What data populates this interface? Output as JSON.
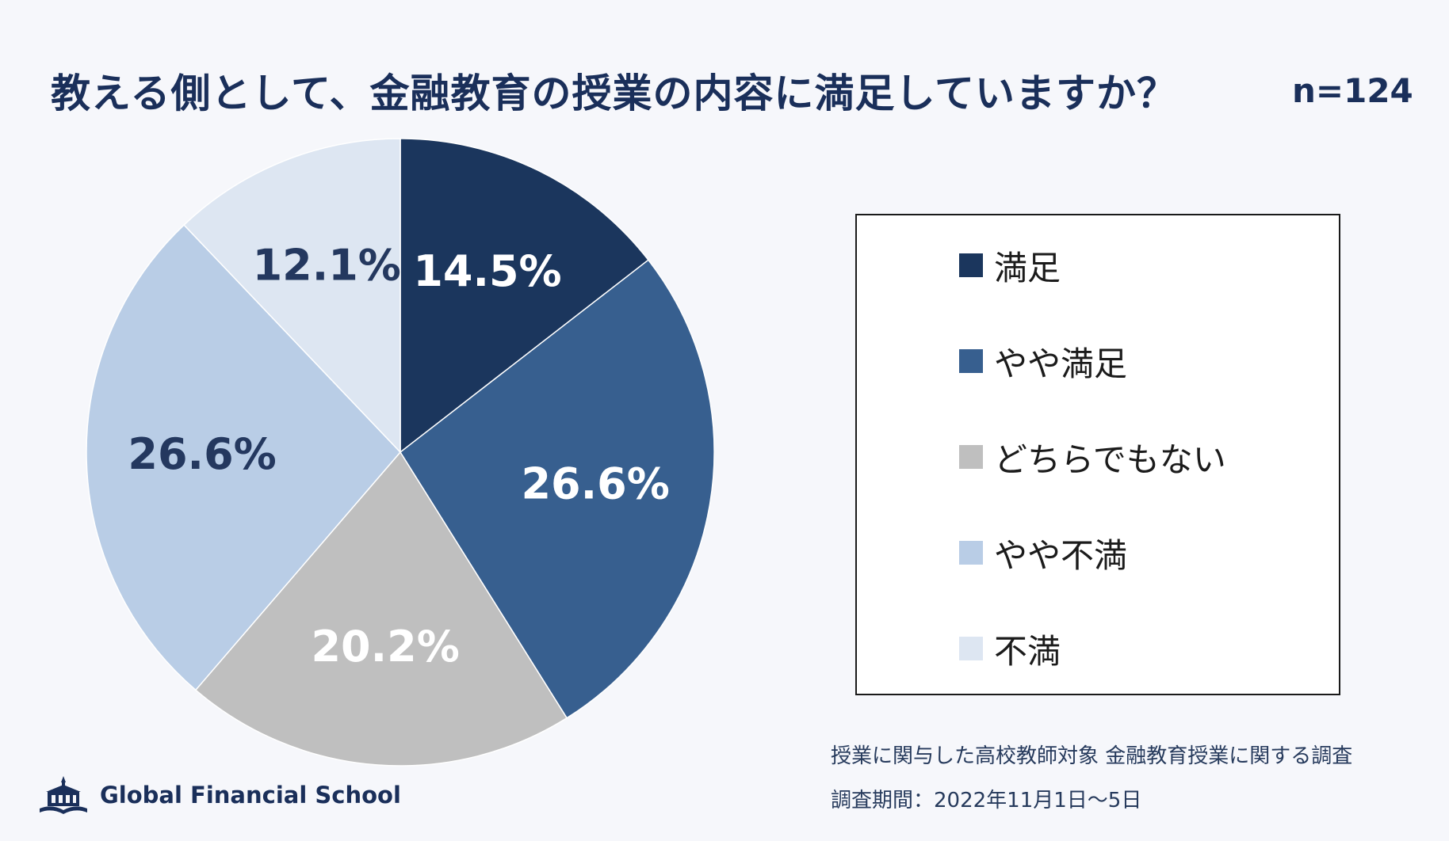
{
  "title": "教える側として、金融教育の授業の内容に満足していますか？",
  "sample_size": "n=124",
  "chart_data": {
    "type": "pie",
    "categories": [
      "満足",
      "やや満足",
      "どちらでもない",
      "やや不満",
      "不満"
    ],
    "values": [
      14.5,
      26.6,
      20.2,
      26.6,
      12.1
    ],
    "labels": [
      "14.5%",
      "26.6%",
      "20.2%",
      "26.6%",
      "12.1%"
    ],
    "colors": [
      "#1b365d",
      "#375f8f",
      "#bfbfbf",
      "#b9cde6",
      "#dde6f2"
    ],
    "label_colors": [
      "#ffffff",
      "#ffffff",
      "#ffffff",
      "#24385f",
      "#24385f"
    ],
    "legend_position": "right",
    "start": "top",
    "direction": "clockwise"
  },
  "footnotes": {
    "survey": "授業に関与した高校教師対象 金融教育授業に関する調査",
    "period": "調査期間：2022年11月1日〜5日"
  },
  "logo": {
    "text": "Global Financial School",
    "icon": "school-building-icon"
  }
}
